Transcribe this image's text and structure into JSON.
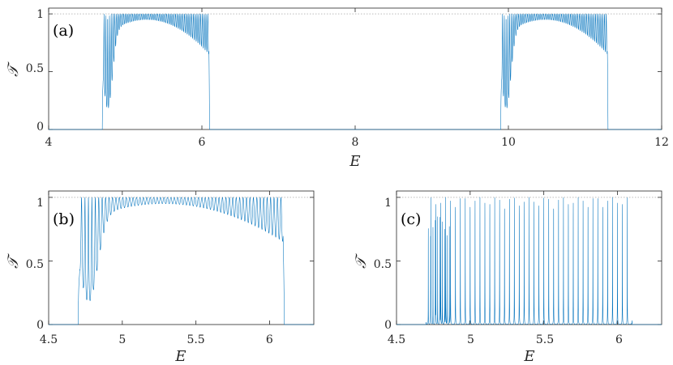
{
  "chart_data": [
    {
      "type": "line",
      "panel_label": "(a)",
      "xlabel": "E",
      "ylabel": "𝒯",
      "xlim": [
        4,
        12
      ],
      "ylim": [
        0,
        1.05
      ],
      "xticks": [
        "4",
        "6",
        "8",
        "10",
        "12"
      ],
      "yticks": [
        "0",
        "0.5",
        "1"
      ],
      "xtick_values": [
        4,
        6,
        8,
        10,
        12
      ],
      "ytick_values": [
        0,
        0.5,
        1
      ],
      "reference_line_y": 1,
      "grid": false,
      "series": [
        {
          "color": "#0072bd",
          "transmission_bands": [
            {
              "x_start": 4.7,
              "x_end": 6.1,
              "peak_max": 1.0,
              "envelope_min_x": 5.28,
              "envelope_min_value": 0.95
            },
            {
              "x_start": 9.9,
              "x_end": 11.3,
              "peak_max": 1.0,
              "envelope_min_x": 10.48,
              "envelope_min_value": 0.95
            }
          ],
          "value_outside_bands": 0
        }
      ]
    },
    {
      "type": "line",
      "panel_label": "(b)",
      "xlabel": "E",
      "ylabel": "𝒯",
      "xlim": [
        4.5,
        6.3
      ],
      "ylim": [
        0,
        1.05
      ],
      "xticks": [
        "4.5",
        "5",
        "5.5",
        "6"
      ],
      "yticks": [
        "0",
        "0.5",
        "1"
      ],
      "xtick_values": [
        4.5,
        5,
        5.5,
        6
      ],
      "ytick_values": [
        0,
        0.5,
        1
      ],
      "reference_line_y": 1,
      "grid": false,
      "series": [
        {
          "color": "#0072bd",
          "transmission_bands": [
            {
              "x_start": 4.7,
              "x_end": 6.1,
              "peak_max": 1.0,
              "envelope_min_x": 5.28,
              "envelope_min_value": 0.95
            }
          ],
          "value_outside_bands": 0
        }
      ]
    },
    {
      "type": "line",
      "panel_label": "(c)",
      "xlabel": "E",
      "ylabel": "𝒯",
      "xlim": [
        4.5,
        6.3
      ],
      "ylim": [
        0,
        1.05
      ],
      "xticks": [
        "4.5",
        "5",
        "5.5",
        "6"
      ],
      "yticks": [
        "0",
        "0.5",
        "1"
      ],
      "xtick_values": [
        4.5,
        5,
        5.5,
        6
      ],
      "ytick_values": [
        0,
        0.5,
        1
      ],
      "reference_line_y": 1,
      "grid": false,
      "series": [
        {
          "color": "#0072bd",
          "transmission_bands": [
            {
              "x_start": 4.7,
              "x_end": 6.1,
              "peak_max": 1.0,
              "resonance_count": 42,
              "valley_value": 0.0
            }
          ],
          "value_outside_bands": 0
        }
      ]
    }
  ]
}
